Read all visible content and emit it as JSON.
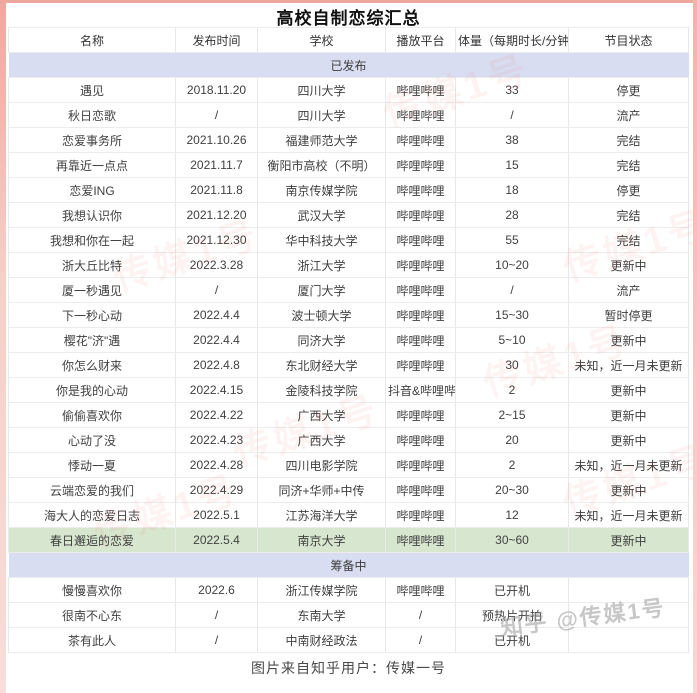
{
  "title": "高校自制恋综汇总",
  "columns": [
    "名称",
    "发布时间",
    "学校",
    "播放平台",
    "体量（每期时长/分钟）",
    "节目状态"
  ],
  "sections": [
    {
      "label": "已发布",
      "rows": [
        {
          "cells": [
            "遇见",
            "2018.11.20",
            "四川大学",
            "哔哩哔哩",
            "33",
            "停更"
          ]
        },
        {
          "cells": [
            "秋日恋歌",
            "/",
            "四川大学",
            "哔哩哔哩",
            "/",
            "流产"
          ]
        },
        {
          "cells": [
            "恋爱事务所",
            "2021.10.26",
            "福建师范大学",
            "哔哩哔哩",
            "38",
            "完结"
          ]
        },
        {
          "cells": [
            "再靠近一点点",
            "2021.11.7",
            "衡阳市高校（不明）",
            "哔哩哔哩",
            "15",
            "完结"
          ]
        },
        {
          "cells": [
            "恋爱ING",
            "2021.11.8",
            "南京传媒学院",
            "哔哩哔哩",
            "18",
            "停更"
          ]
        },
        {
          "cells": [
            "我想认识你",
            "2021.12.20",
            "武汉大学",
            "哔哩哔哩",
            "28",
            "完结"
          ]
        },
        {
          "cells": [
            "我想和你在一起",
            "2021.12.30",
            "华中科技大学",
            "哔哩哔哩",
            "55",
            "完结"
          ]
        },
        {
          "cells": [
            "浙大丘比特",
            "2022.3.28",
            "浙江大学",
            "哔哩哔哩",
            "10~20",
            "更新中"
          ]
        },
        {
          "cells": [
            "厦一秒遇见",
            "/",
            "厦门大学",
            "哔哩哔哩",
            "/",
            "流产"
          ]
        },
        {
          "cells": [
            "下一秒心动",
            "2022.4.4",
            "波士顿大学",
            "哔哩哔哩",
            "15~30",
            "暂时停更"
          ]
        },
        {
          "cells": [
            "樱花\"济\"遇",
            "2022.4.4",
            "同济大学",
            "哔哩哔哩",
            "5~10",
            "更新中"
          ]
        },
        {
          "cells": [
            "你怎么财来",
            "2022.4.8",
            "东北财经大学",
            "哔哩哔哩",
            "30",
            "未知，近一月未更新"
          ]
        },
        {
          "cells": [
            "你是我的心动",
            "2022.4.15",
            "金陵科技学院",
            "抖音&哔哩哔哩",
            "2",
            "更新中"
          ]
        },
        {
          "cells": [
            "偷偷喜欢你",
            "2022.4.22",
            "广西大学",
            "哔哩哔哩",
            "2~15",
            "更新中"
          ]
        },
        {
          "cells": [
            "心动了没",
            "2022.4.23",
            "广西大学",
            "哔哩哔哩",
            "20",
            "更新中"
          ]
        },
        {
          "cells": [
            "悸动一夏",
            "2022.4.28",
            "四川电影学院",
            "哔哩哔哩",
            "2",
            "未知，近一月未更新"
          ]
        },
        {
          "cells": [
            "云端恋爱的我们",
            "2022.4.29",
            "同济+华师+中传",
            "哔哩哔哩",
            "20~30",
            "更新中"
          ]
        },
        {
          "cells": [
            "海大人的恋爱日志",
            "2022.5.1",
            "江苏海洋大学",
            "哔哩哔哩",
            "12",
            "未知，近一月未更新"
          ]
        },
        {
          "cells": [
            "春日邂逅的恋爱",
            "2022.5.4",
            "南京大学",
            "哔哩哔哩",
            "30~60",
            "更新中"
          ],
          "highlight": true
        }
      ]
    },
    {
      "label": "筹备中",
      "rows": [
        {
          "cells": [
            "慢慢喜欢你",
            "2022.6",
            "浙江传媒学院",
            "哔哩哔哩",
            "已开机",
            ""
          ]
        },
        {
          "cells": [
            "很南不心东",
            "/",
            "东南大学",
            "/",
            "预热片开拍",
            ""
          ]
        },
        {
          "cells": [
            "茶有此人",
            "/",
            "中南财经政法",
            "/",
            "已开机",
            ""
          ]
        }
      ]
    }
  ],
  "caption": "图片来自知乎用户：传媒一号",
  "watermarks": {
    "zhihu": "知乎 @传媒1号",
    "brand": "传媒1号"
  },
  "colors": {
    "section_band": "#d9ddf1",
    "highlight_row": "#d7e7cf",
    "frame_pink": "#f0a89e",
    "brand_red": "#e03c3c"
  }
}
